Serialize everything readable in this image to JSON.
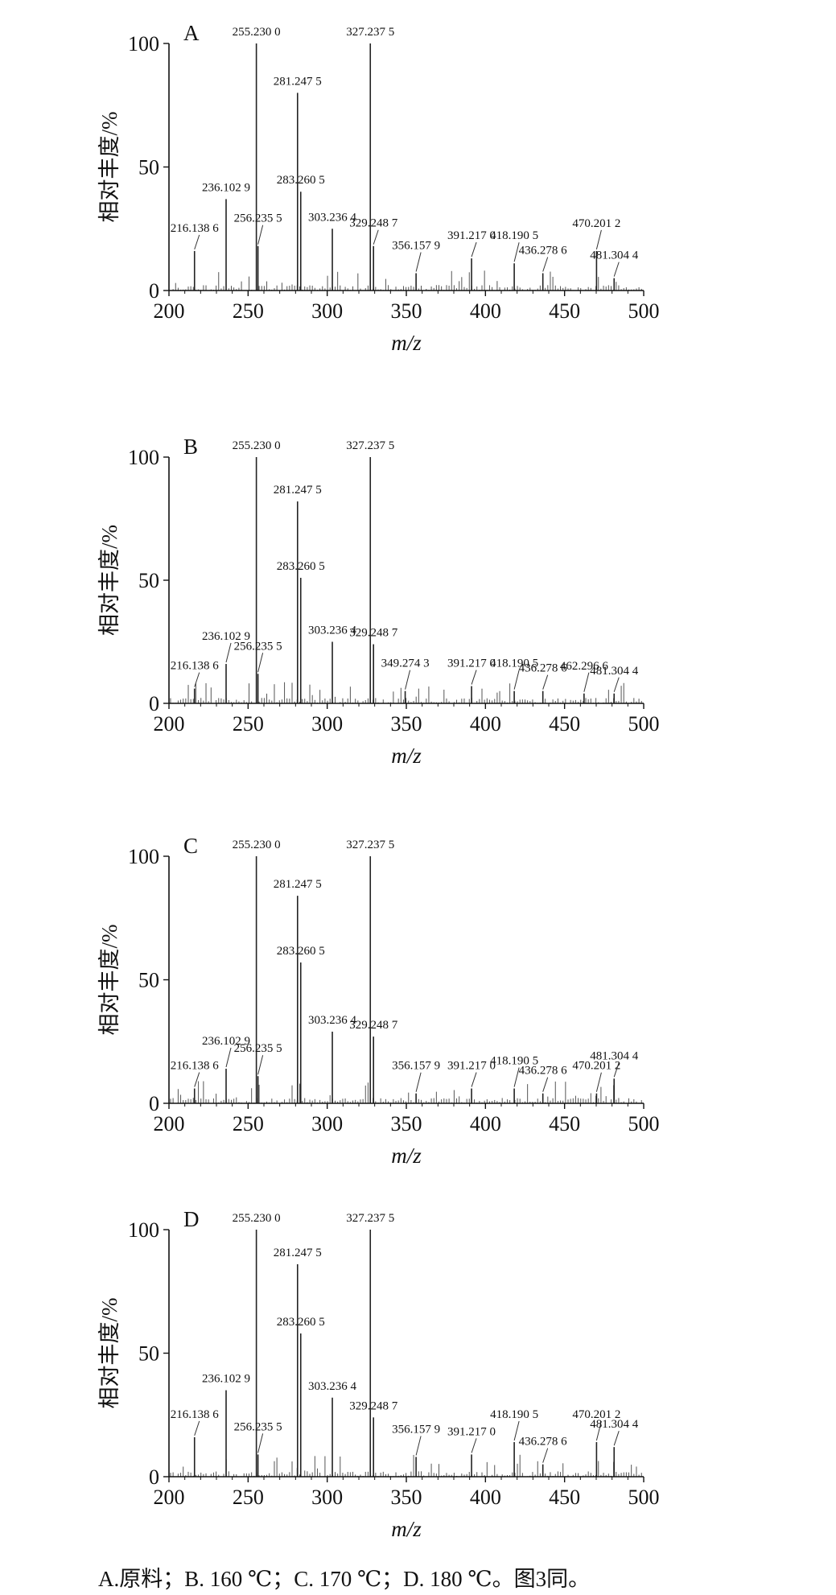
{
  "caption": "A.原料；B. 160 ℃；C. 170 ℃；D. 180 ℃。图3同。",
  "chart_data": [
    {
      "type": "bar",
      "panel_label": "A",
      "xlabel": "m/z",
      "ylabel": "相对丰度/%",
      "xlim": [
        200,
        500
      ],
      "ylim": [
        0,
        100
      ],
      "xticks": [
        200,
        250,
        300,
        350,
        400,
        450,
        500
      ],
      "yticks": [
        0,
        50,
        100
      ],
      "peaks": [
        {
          "mz": 216.1386,
          "intensity": 16,
          "label": "216.138 6"
        },
        {
          "mz": 236.1029,
          "intensity": 37,
          "label": "236.102 9"
        },
        {
          "mz": 255.23,
          "intensity": 100,
          "label": "255.230 0"
        },
        {
          "mz": 256.2355,
          "intensity": 18,
          "label": "256.235 5"
        },
        {
          "mz": 281.2475,
          "intensity": 80,
          "label": "281.247 5"
        },
        {
          "mz": 283.2605,
          "intensity": 40,
          "label": "283.260 5"
        },
        {
          "mz": 303.2364,
          "intensity": 25,
          "label": "303.236 4"
        },
        {
          "mz": 327.2375,
          "intensity": 100,
          "label": "327.237 5"
        },
        {
          "mz": 329.2487,
          "intensity": 18,
          "label": "329.248 7"
        },
        {
          "mz": 356.1579,
          "intensity": 7,
          "label": "356.157 9"
        },
        {
          "mz": 391.217,
          "intensity": 13,
          "label": "391.217 0"
        },
        {
          "mz": 418.1905,
          "intensity": 11,
          "label": "418.190 5"
        },
        {
          "mz": 436.2786,
          "intensity": 7,
          "label": "436.278 6"
        },
        {
          "mz": 470.2012,
          "intensity": 16,
          "label": "470.201 2"
        },
        {
          "mz": 481.3044,
          "intensity": 5,
          "label": "481.304 4"
        }
      ]
    },
    {
      "type": "bar",
      "panel_label": "B",
      "xlabel": "m/z",
      "ylabel": "相对丰度/%",
      "xlim": [
        200,
        500
      ],
      "ylim": [
        0,
        100
      ],
      "xticks": [
        200,
        250,
        300,
        350,
        400,
        450,
        500
      ],
      "yticks": [
        0,
        50,
        100
      ],
      "peaks": [
        {
          "mz": 216.1386,
          "intensity": 6,
          "label": "216.138 6"
        },
        {
          "mz": 236.1029,
          "intensity": 16,
          "label": "236.102 9"
        },
        {
          "mz": 255.23,
          "intensity": 100,
          "label": "255.230 0"
        },
        {
          "mz": 256.2355,
          "intensity": 12,
          "label": "256.235 5"
        },
        {
          "mz": 281.2475,
          "intensity": 82,
          "label": "281.247 5"
        },
        {
          "mz": 283.2605,
          "intensity": 51,
          "label": "283.260 5"
        },
        {
          "mz": 303.2364,
          "intensity": 25,
          "label": "303.236 4"
        },
        {
          "mz": 327.2375,
          "intensity": 100,
          "label": "327.237 5"
        },
        {
          "mz": 329.2487,
          "intensity": 24,
          "label": "329.248 7"
        },
        {
          "mz": 349.2743,
          "intensity": 5,
          "label": "349.274 3"
        },
        {
          "mz": 391.217,
          "intensity": 7,
          "label": "391.217 0"
        },
        {
          "mz": 418.1905,
          "intensity": 5,
          "label": "418.190 5"
        },
        {
          "mz": 436.2786,
          "intensity": 5,
          "label": "436.278 6"
        },
        {
          "mz": 462.2966,
          "intensity": 4,
          "label": "462.296 6"
        },
        {
          "mz": 481.3044,
          "intensity": 4,
          "label": "481.304 4"
        }
      ]
    },
    {
      "type": "bar",
      "panel_label": "C",
      "xlabel": "m/z",
      "ylabel": "相对丰度/%",
      "xlim": [
        200,
        500
      ],
      "ylim": [
        0,
        100
      ],
      "xticks": [
        200,
        250,
        300,
        350,
        400,
        450,
        500
      ],
      "yticks": [
        0,
        50,
        100
      ],
      "peaks": [
        {
          "mz": 216.1386,
          "intensity": 6,
          "label": "216.138 6"
        },
        {
          "mz": 236.1029,
          "intensity": 14,
          "label": "236.102 9"
        },
        {
          "mz": 255.23,
          "intensity": 100,
          "label": "255.230 0"
        },
        {
          "mz": 256.2355,
          "intensity": 11,
          "label": "256.235 5"
        },
        {
          "mz": 281.2475,
          "intensity": 84,
          "label": "281.247 5"
        },
        {
          "mz": 283.2605,
          "intensity": 57,
          "label": "283.260 5"
        },
        {
          "mz": 303.2364,
          "intensity": 29,
          "label": "303.236 4"
        },
        {
          "mz": 327.2375,
          "intensity": 100,
          "label": "327.237 5"
        },
        {
          "mz": 329.2487,
          "intensity": 27,
          "label": "329.248 7"
        },
        {
          "mz": 356.1579,
          "intensity": 4,
          "label": "356.157 9"
        },
        {
          "mz": 391.217,
          "intensity": 6,
          "label": "391.217 0"
        },
        {
          "mz": 418.1905,
          "intensity": 6,
          "label": "418.190 5"
        },
        {
          "mz": 436.2786,
          "intensity": 4,
          "label": "436.278 6"
        },
        {
          "mz": 470.2012,
          "intensity": 4,
          "label": "470.201 2"
        },
        {
          "mz": 481.3044,
          "intensity": 10,
          "label": "481.304 4"
        }
      ]
    },
    {
      "type": "bar",
      "panel_label": "D",
      "xlabel": "m/z",
      "ylabel": "相对丰度/%",
      "xlim": [
        200,
        500
      ],
      "ylim": [
        0,
        100
      ],
      "xticks": [
        200,
        250,
        300,
        350,
        400,
        450,
        500
      ],
      "yticks": [
        0,
        50,
        100
      ],
      "peaks": [
        {
          "mz": 216.1386,
          "intensity": 16,
          "label": "216.138 6"
        },
        {
          "mz": 236.1029,
          "intensity": 35,
          "label": "236.102 9"
        },
        {
          "mz": 255.23,
          "intensity": 100,
          "label": "255.230 0"
        },
        {
          "mz": 256.2355,
          "intensity": 9,
          "label": "256.235 5"
        },
        {
          "mz": 281.2475,
          "intensity": 86,
          "label": "281.247 5"
        },
        {
          "mz": 283.2605,
          "intensity": 58,
          "label": "283.260 5"
        },
        {
          "mz": 303.2364,
          "intensity": 32,
          "label": "303.236 4"
        },
        {
          "mz": 327.2375,
          "intensity": 100,
          "label": "327.237 5"
        },
        {
          "mz": 329.2487,
          "intensity": 24,
          "label": "329.248 7"
        },
        {
          "mz": 356.1579,
          "intensity": 8,
          "label": "356.157 9"
        },
        {
          "mz": 391.217,
          "intensity": 9,
          "label": "391.217 0"
        },
        {
          "mz": 418.1905,
          "intensity": 14,
          "label": "418.190 5"
        },
        {
          "mz": 436.2786,
          "intensity": 5,
          "label": "436.278 6"
        },
        {
          "mz": 470.2012,
          "intensity": 14,
          "label": "470.201 2"
        },
        {
          "mz": 481.3044,
          "intensity": 12,
          "label": "481.304 4"
        }
      ]
    }
  ]
}
